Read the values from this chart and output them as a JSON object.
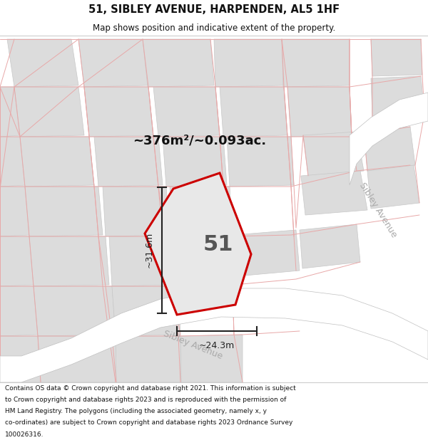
{
  "title_line1": "51, SIBLEY AVENUE, HARPENDEN, AL5 1HF",
  "title_line2": "Map shows position and indicative extent of the property.",
  "area_label": "~376m²/~0.093ac.",
  "width_label": "~24.3m",
  "height_label": "~31.6m",
  "property_number": "51",
  "street_label_bottom": "Sibley Avenue",
  "street_label_right": "Sibley Avenue",
  "footer_lines": [
    "Contains OS data © Crown copyright and database right 2021. This information is subject",
    "to Crown copyright and database rights 2023 and is reproduced with the permission of",
    "HM Land Registry. The polygons (including the associated geometry, namely x, y",
    "co-ordinates) are subject to Crown copyright and database rights 2023 Ordnance Survey",
    "100026316."
  ],
  "map_bg": "#f2f0f0",
  "road_fill": "#ffffff",
  "road_edge": "#c0c0c0",
  "block_fill": "#dcdcdc",
  "block_edge": "#c8c8c8",
  "pink": "#e8a8a8",
  "prop_fill": "#e8e8e8",
  "prop_edge": "#cc0000",
  "dim_color": "#222222",
  "street_color": "#aaaaaa",
  "title_color": "#111111",
  "footer_color": "#111111"
}
